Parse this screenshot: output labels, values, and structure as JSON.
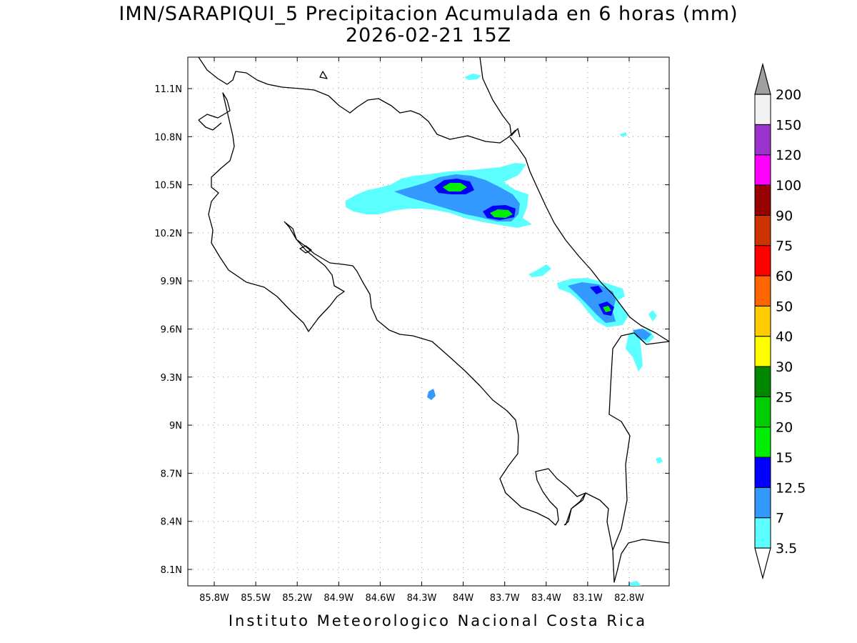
{
  "title_line1": "IMN/SARAPIQUI_5 Precipitacion Acumulada en 6 horas (mm)",
  "title_line2": "2026-02-21 15Z",
  "footer": "Instituto Meteorologico Nacional Costa Rica",
  "map": {
    "lon_labels": [
      "85.8W",
      "85.5W",
      "85.2W",
      "84.9W",
      "84.6W",
      "84.3W",
      "84W",
      "83.7W",
      "83.4W",
      "83.1W",
      "82.8W"
    ],
    "lat_labels": [
      "11.1N",
      "10.8N",
      "10.5N",
      "10.2N",
      "9.9N",
      "9.6N",
      "9.3N",
      "9N",
      "8.7N",
      "8.4N",
      "8.1N"
    ],
    "grid": true
  },
  "colorbar": {
    "levels": [
      "3.5",
      "7",
      "12.5",
      "15",
      "20",
      "25",
      "30",
      "40",
      "50",
      "60",
      "75",
      "90",
      "100",
      "120",
      "150",
      "200"
    ],
    "colors": [
      "#5bffff",
      "#3399ff",
      "#0000ff",
      "#00ee00",
      "#00cc00",
      "#008800",
      "#ffff00",
      "#ffcc00",
      "#ff6600",
      "#ff0000",
      "#cc3300",
      "#990000",
      "#ff00ff",
      "#9933cc",
      "#f2f2f2",
      "#a0a0a0"
    ]
  }
}
